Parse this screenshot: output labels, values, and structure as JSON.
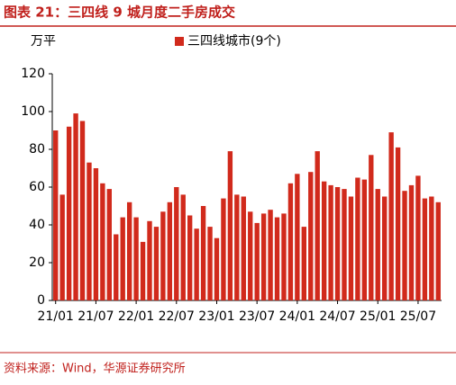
{
  "chart_data": {
    "type": "bar",
    "title": "图表 21：三四线 9 城月度二手房成交",
    "y_label": "万平",
    "source": "资料来源：Wind，华源证券研究所",
    "categories": [
      "21/01",
      null,
      null,
      null,
      null,
      null,
      "21/07",
      null,
      null,
      null,
      null,
      null,
      "22/01",
      null,
      null,
      null,
      null,
      null,
      "22/07",
      null,
      null,
      null,
      null,
      null,
      "23/01",
      null,
      null,
      null,
      null,
      null,
      "23/07",
      null,
      null,
      null,
      null,
      null,
      "24/01",
      null,
      null,
      null,
      null,
      null,
      "24/07",
      null,
      null,
      null,
      null,
      null,
      "25/01",
      null,
      null,
      null,
      null,
      null,
      "25/07",
      null,
      null,
      null
    ],
    "series": [
      {
        "name": "三四线城市(9个)",
        "color": "#d12a1c",
        "values": [
          90,
          56,
          92,
          99,
          95,
          73,
          70,
          62,
          59,
          35,
          44,
          52,
          44,
          31,
          42,
          39,
          47,
          52,
          60,
          56,
          45,
          38,
          50,
          39,
          33,
          54,
          79,
          56,
          55,
          47,
          41,
          46,
          48,
          44,
          46,
          62,
          67,
          39,
          68,
          79,
          63,
          61,
          60,
          59,
          55,
          65,
          64,
          77,
          59,
          55,
          89,
          81,
          58,
          61,
          66,
          54,
          55,
          52
        ]
      }
    ],
    "ylim": [
      0,
      120
    ],
    "yticks": [
      0,
      20,
      40,
      60,
      80,
      100,
      120
    ]
  }
}
